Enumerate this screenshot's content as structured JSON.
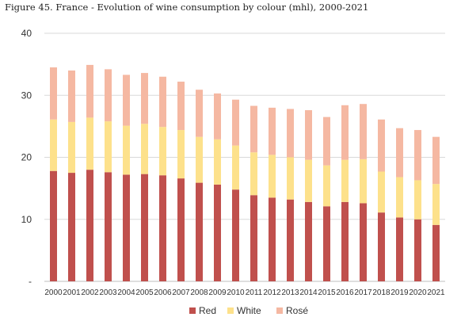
{
  "chart_data": {
    "type": "bar",
    "stacked": true,
    "title": "Figure 45. France - Evolution of wine consumption by colour (mhl), 2000-2021",
    "categories": [
      "2000",
      "2001",
      "2002",
      "2003",
      "2004",
      "2005",
      "2006",
      "2007",
      "2008",
      "2009",
      "2010",
      "2011",
      "2012",
      "2013",
      "2014",
      "2015",
      "2016",
      "2017",
      "2018",
      "2019",
      "2020",
      "2021"
    ],
    "series": [
      {
        "name": "Red",
        "color": "#c0504d",
        "values": [
          17.8,
          17.5,
          18.0,
          17.6,
          17.2,
          17.3,
          17.1,
          16.6,
          15.9,
          15.6,
          14.8,
          13.9,
          13.5,
          13.2,
          12.8,
          12.1,
          12.8,
          12.6,
          11.1,
          10.3,
          10.0,
          9.1
        ]
      },
      {
        "name": "White",
        "color": "#fde18b",
        "values": [
          8.3,
          8.2,
          8.4,
          8.2,
          7.9,
          8.1,
          7.8,
          7.8,
          7.4,
          7.3,
          7.1,
          6.9,
          6.9,
          6.8,
          6.8,
          6.6,
          6.8,
          7.1,
          6.6,
          6.5,
          6.3,
          6.6
        ]
      },
      {
        "name": "Rosé",
        "color": "#f5b8a2",
        "values": [
          8.4,
          8.3,
          8.5,
          8.4,
          8.2,
          8.2,
          8.1,
          7.8,
          7.6,
          7.4,
          7.4,
          7.5,
          7.6,
          7.8,
          8.0,
          7.8,
          8.8,
          8.9,
          8.4,
          7.9,
          8.1,
          7.6
        ]
      }
    ],
    "ylim": [
      0,
      40
    ],
    "yticks": [
      "-",
      "10",
      "20",
      "30",
      "40"
    ],
    "grid": true,
    "legend_position": "bottom"
  }
}
